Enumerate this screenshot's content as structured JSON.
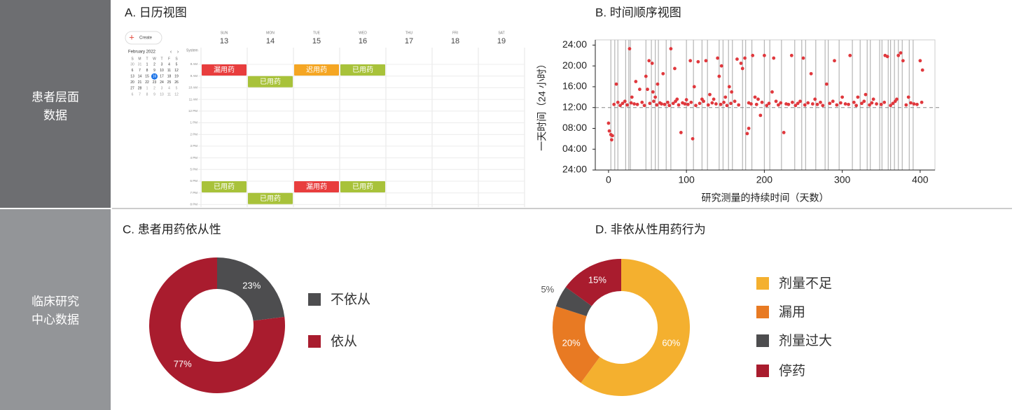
{
  "side_labels": [
    [
      "患者层面",
      "数据"
    ],
    [
      "临床研究",
      "中心数据"
    ]
  ],
  "calendar": {
    "title": "A. 日历视图",
    "create": "Create",
    "month": "February 2022",
    "nav": [
      "‹",
      "›"
    ],
    "mini_weekdays": [
      "S",
      "M",
      "T",
      "W",
      "T",
      "F",
      "S"
    ],
    "mini_days": [
      [
        "30",
        "31",
        "1",
        "2",
        "3",
        "4",
        "5"
      ],
      [
        "6",
        "7",
        "8",
        "9",
        "10",
        "11",
        "12"
      ],
      [
        "13",
        "14",
        "15",
        "16",
        "17",
        "18",
        "19"
      ],
      [
        "20",
        "21",
        "22",
        "23",
        "24",
        "25",
        "26"
      ],
      [
        "27",
        "28",
        "1",
        "2",
        "3",
        "4",
        "5"
      ],
      [
        "6",
        "7",
        "8",
        "9",
        "10",
        "11",
        "12"
      ]
    ],
    "today": "16",
    "timezone": "System",
    "days": [
      {
        "dow": "SUN",
        "date": "13"
      },
      {
        "dow": "MON",
        "date": "14"
      },
      {
        "dow": "TUE",
        "date": "15"
      },
      {
        "dow": "WED",
        "date": "16"
      },
      {
        "dow": "THU",
        "date": "17"
      },
      {
        "dow": "FRI",
        "date": "18"
      },
      {
        "dow": "SAT",
        "date": "19"
      }
    ],
    "hours": [
      "8 AM",
      "9 AM",
      "10 AM",
      "11 AM",
      "12 PM",
      "1 PM",
      "2 PM",
      "3 PM",
      "4 PM",
      "5 PM",
      "6 PM",
      "7 PM",
      "8 PM"
    ],
    "events": [
      {
        "day": 0,
        "slot": 0,
        "label": "漏用药",
        "color": "#e83d3d"
      },
      {
        "day": 1,
        "slot": 1,
        "label": "已用药",
        "color": "#a8c23a"
      },
      {
        "day": 2,
        "slot": 0,
        "label": "迟用药",
        "color": "#f5a623"
      },
      {
        "day": 3,
        "slot": 0,
        "label": "已用药",
        "color": "#a8c23a"
      },
      {
        "day": 0,
        "slot": 10,
        "label": "已用药",
        "color": "#a8c23a"
      },
      {
        "day": 1,
        "slot": 11,
        "label": "已用药",
        "color": "#a8c23a"
      },
      {
        "day": 2,
        "slot": 10,
        "label": "漏用药",
        "color": "#e83d3d"
      },
      {
        "day": 3,
        "slot": 10,
        "label": "已用药",
        "color": "#a8c23a"
      }
    ]
  },
  "chart_data": [
    {
      "type": "scatter",
      "title": "B. 时间顺序视图",
      "xlabel": "研究测量的持续时间（天数）",
      "ylabel": "一天时间（24 小时）",
      "color": "#e0383d",
      "x": [
        0,
        1,
        3,
        4,
        5,
        10,
        27,
        30,
        35,
        40,
        48,
        50,
        52,
        56,
        57,
        60,
        63,
        70,
        80,
        85,
        88,
        93,
        100,
        105,
        108,
        110,
        115,
        120,
        125,
        130,
        135,
        140,
        142,
        145,
        150,
        155,
        158,
        165,
        170,
        172,
        175,
        178,
        180,
        185,
        188,
        192,
        195,
        200,
        210,
        212,
        225,
        235,
        250,
        260,
        265,
        280,
        290,
        300,
        310,
        320,
        330,
        340,
        355,
        358,
        370,
        372,
        375,
        378,
        385,
        400,
        403,
        7,
        12,
        15,
        18,
        21,
        24,
        29,
        33,
        37,
        43,
        46,
        53,
        58,
        62,
        66,
        68,
        72,
        76,
        78,
        83,
        86,
        90,
        95,
        98,
        102,
        106,
        112,
        117,
        122,
        128,
        133,
        138,
        144,
        148,
        152,
        157,
        162,
        167,
        180,
        183,
        190,
        197,
        203,
        206,
        215,
        218,
        221,
        228,
        231,
        236,
        240,
        243,
        246,
        252,
        256,
        262,
        268,
        272,
        275,
        284,
        288,
        293,
        298,
        304,
        308,
        315,
        318,
        325,
        328,
        335,
        338,
        344,
        350,
        354,
        362,
        365,
        368,
        382,
        388,
        392,
        396,
        402
      ],
      "y": [
        9,
        7.5,
        6.8,
        5.8,
        6.6,
        16.5,
        23.3,
        14,
        17,
        15.5,
        18,
        15.5,
        21,
        20.5,
        15,
        14,
        16.5,
        18.5,
        23.3,
        19.5,
        13.6,
        7.2,
        13.5,
        21,
        6,
        16,
        20.8,
        13.6,
        21,
        14.5,
        13.6,
        21.5,
        18,
        20,
        14,
        16,
        15,
        21.3,
        20.5,
        19.5,
        21.5,
        7,
        8,
        22,
        14,
        13.6,
        10.5,
        22,
        15,
        21.5,
        7.2,
        22,
        21.5,
        18.5,
        13.6,
        16.5,
        21,
        14,
        22,
        14,
        14.5,
        13.6,
        22,
        21.8,
        13.6,
        22,
        22.5,
        21,
        14,
        21,
        19.2,
        12.6,
        13.0,
        12.4,
        12.8,
        13.2,
        12.5,
        12.9,
        12.7,
        12.6,
        13.0,
        12.4,
        12.8,
        13.2,
        12.5,
        12.9,
        12.7,
        12.6,
        13.0,
        12.4,
        12.8,
        13.2,
        12.5,
        12.9,
        12.7,
        12.6,
        13.0,
        12.4,
        12.8,
        13.2,
        12.5,
        12.9,
        12.7,
        12.6,
        13.0,
        12.4,
        12.8,
        13.2,
        12.5,
        12.9,
        12.7,
        12.6,
        13.0,
        12.4,
        12.8,
        13.2,
        12.5,
        12.9,
        12.7,
        12.6,
        13.0,
        12.4,
        12.8,
        13.2,
        12.5,
        12.9,
        12.7,
        12.6,
        13.0,
        12.4,
        12.8,
        13.2,
        12.5,
        12.9,
        12.7,
        12.6,
        13.0,
        12.4,
        12.8,
        13.2,
        12.5,
        12.9,
        12.7,
        12.6,
        13.0,
        12.4,
        12.8,
        13.2,
        12.5,
        12.9,
        12.7,
        12.6,
        13.0
      ],
      "vlines": [
        3,
        8,
        12,
        22,
        26,
        28,
        48,
        55,
        60,
        64,
        74,
        80,
        100,
        109,
        120,
        127,
        142,
        147,
        154,
        159,
        172,
        176,
        184,
        200,
        207,
        222,
        239,
        248,
        253,
        266,
        278,
        282,
        296,
        313,
        323,
        332,
        336,
        348,
        351,
        359,
        362,
        367,
        372,
        377,
        386,
        391
      ],
      "reference_line": 12,
      "xlim": [
        -17,
        419
      ],
      "xticks": [
        0,
        100,
        200,
        300,
        400
      ],
      "ylim": [
        0,
        25
      ],
      "yticks": [
        {
          "value": 0,
          "label": "24:00"
        },
        {
          "value": 4,
          "label": "04:00"
        },
        {
          "value": 8,
          "label": "08:00"
        },
        {
          "value": 12,
          "label": "12:00"
        },
        {
          "value": 16,
          "label": "16:00"
        },
        {
          "value": 20,
          "label": "20:00"
        },
        {
          "value": 24,
          "label": "24:00"
        }
      ]
    },
    {
      "type": "pie",
      "title": "C. 患者用药依从性",
      "categories": [
        "不依从",
        "依从"
      ],
      "values": [
        23,
        77
      ],
      "value_labels": [
        "23%",
        "77%"
      ],
      "colors": [
        "#4d4d4f",
        "#a91c2e"
      ]
    },
    {
      "type": "pie",
      "title": "D. 非依从性用药行为",
      "categories": [
        "剂量不足",
        "漏用",
        "剂量过大",
        "停药"
      ],
      "values": [
        60,
        20,
        5,
        15
      ],
      "value_labels": [
        "60%",
        "20%",
        "5%",
        "15%"
      ],
      "colors": [
        "#f4b02f",
        "#e87a23",
        "#4d4d4f",
        "#a91c2e"
      ]
    }
  ]
}
